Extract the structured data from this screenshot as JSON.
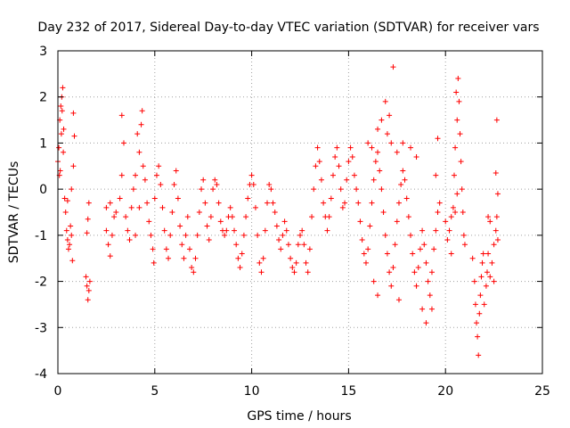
{
  "chart_data": {
    "type": "scatter",
    "title": "Day 232 of 2017, Sidereal Day-to-day VTEC variation (SDTVAR) for receiver vars",
    "xlabel": "GPS time / hours",
    "ylabel": "SDTVAR / TECUs",
    "xlim": [
      0,
      25
    ],
    "ylim": [
      -4,
      3
    ],
    "xticks": [
      0,
      5,
      10,
      15,
      20,
      25
    ],
    "yticks": [
      -4,
      -3,
      -2,
      -1,
      0,
      1,
      2,
      3
    ],
    "grid": true,
    "marker": "+",
    "marker_color": "#ff0000",
    "series": [
      {
        "name": "vars",
        "points": [
          [
            0.0,
            0.6
          ],
          [
            0.05,
            0.9
          ],
          [
            0.1,
            1.5
          ],
          [
            0.15,
            1.8
          ],
          [
            0.2,
            2.0
          ],
          [
            0.25,
            2.2
          ],
          [
            0.12,
            0.4
          ],
          [
            0.18,
            1.2
          ],
          [
            0.22,
            1.7
          ],
          [
            0.3,
            1.3
          ],
          [
            0.28,
            0.8
          ],
          [
            0.08,
            0.3
          ],
          [
            0.35,
            -0.2
          ],
          [
            0.4,
            -0.5
          ],
          [
            0.45,
            -0.9
          ],
          [
            0.5,
            -1.1
          ],
          [
            0.55,
            -1.3
          ],
          [
            0.6,
            -1.2
          ],
          [
            0.65,
            -0.8
          ],
          [
            0.7,
            -1.0
          ],
          [
            0.75,
            -1.55
          ],
          [
            0.7,
            0.0
          ],
          [
            0.8,
            0.5
          ],
          [
            0.85,
            1.15
          ],
          [
            0.8,
            1.65
          ],
          [
            0.5,
            -0.25
          ],
          [
            1.45,
            -1.9
          ],
          [
            1.5,
            -2.1
          ],
          [
            1.55,
            -2.4
          ],
          [
            1.6,
            -2.2
          ],
          [
            1.65,
            -2.0
          ],
          [
            1.5,
            -0.95
          ],
          [
            1.55,
            -0.65
          ],
          [
            1.6,
            -0.3
          ],
          [
            2.5,
            -0.9
          ],
          [
            2.6,
            -1.2
          ],
          [
            2.7,
            -1.45
          ],
          [
            2.8,
            -1.0
          ],
          [
            2.9,
            -0.6
          ],
          [
            2.5,
            -0.4
          ],
          [
            2.7,
            -0.3
          ],
          [
            3.0,
            -0.5
          ],
          [
            3.2,
            -0.2
          ],
          [
            3.3,
            0.3
          ],
          [
            3.4,
            1.0
          ],
          [
            3.3,
            1.6
          ],
          [
            3.5,
            -0.6
          ],
          [
            3.6,
            -0.9
          ],
          [
            3.7,
            -1.1
          ],
          [
            3.8,
            -0.4
          ],
          [
            3.9,
            0.0
          ],
          [
            4.0,
            0.3
          ],
          [
            4.1,
            1.2
          ],
          [
            4.2,
            0.8
          ],
          [
            4.3,
            1.4
          ],
          [
            4.35,
            1.7
          ],
          [
            4.4,
            0.5
          ],
          [
            4.5,
            0.2
          ],
          [
            4.6,
            -0.3
          ],
          [
            4.7,
            -0.7
          ],
          [
            4.8,
            -1.0
          ],
          [
            4.9,
            -1.3
          ],
          [
            4.95,
            -1.6
          ],
          [
            4.2,
            -0.4
          ],
          [
            4.0,
            -1.0
          ],
          [
            5.0,
            -0.2
          ],
          [
            5.1,
            0.3
          ],
          [
            5.2,
            0.5
          ],
          [
            5.3,
            0.1
          ],
          [
            5.4,
            -0.4
          ],
          [
            5.5,
            -0.9
          ],
          [
            5.6,
            -1.3
          ],
          [
            5.7,
            -1.5
          ],
          [
            5.8,
            -1.0
          ],
          [
            5.9,
            -0.5
          ],
          [
            6.0,
            0.1
          ],
          [
            6.1,
            0.4
          ],
          [
            6.2,
            -0.2
          ],
          [
            6.3,
            -0.8
          ],
          [
            6.4,
            -1.2
          ],
          [
            6.5,
            -1.5
          ],
          [
            6.6,
            -1.0
          ],
          [
            6.7,
            -0.6
          ],
          [
            6.8,
            -1.3
          ],
          [
            6.9,
            -1.7
          ],
          [
            7.0,
            -1.8
          ],
          [
            7.1,
            -1.5
          ],
          [
            7.2,
            -1.0
          ],
          [
            7.3,
            -0.5
          ],
          [
            7.4,
            0.0
          ],
          [
            7.5,
            0.2
          ],
          [
            7.6,
            -0.3
          ],
          [
            7.7,
            -0.8
          ],
          [
            7.8,
            -1.1
          ],
          [
            7.9,
            -0.6
          ],
          [
            8.0,
            0.0
          ],
          [
            8.1,
            0.2
          ],
          [
            8.2,
            0.1
          ],
          [
            8.3,
            -0.3
          ],
          [
            8.4,
            -0.7
          ],
          [
            8.5,
            -0.9
          ],
          [
            8.6,
            -1.0
          ],
          [
            8.7,
            -0.9
          ],
          [
            8.8,
            -0.6
          ],
          [
            8.9,
            -0.4
          ],
          [
            9.0,
            -0.6
          ],
          [
            9.1,
            -0.9
          ],
          [
            9.2,
            -1.2
          ],
          [
            9.3,
            -1.5
          ],
          [
            9.4,
            -1.7
          ],
          [
            9.5,
            -1.4
          ],
          [
            9.6,
            -1.0
          ],
          [
            9.7,
            -0.6
          ],
          [
            9.8,
            -0.2
          ],
          [
            9.9,
            0.1
          ],
          [
            10.0,
            0.3
          ],
          [
            10.1,
            0.1
          ],
          [
            10.2,
            -0.4
          ],
          [
            10.3,
            -1.0
          ],
          [
            10.4,
            -1.6
          ],
          [
            10.5,
            -1.8
          ],
          [
            10.6,
            -1.5
          ],
          [
            10.7,
            -0.9
          ],
          [
            10.8,
            -0.3
          ],
          [
            10.9,
            0.1
          ],
          [
            11.0,
            0.0
          ],
          [
            11.1,
            -0.3
          ],
          [
            11.2,
            -0.5
          ],
          [
            11.3,
            -0.8
          ],
          [
            11.4,
            -1.1
          ],
          [
            11.5,
            -1.3
          ],
          [
            11.6,
            -1.0
          ],
          [
            11.7,
            -0.7
          ],
          [
            11.8,
            -0.9
          ],
          [
            11.9,
            -1.2
          ],
          [
            12.0,
            -1.5
          ],
          [
            12.1,
            -1.7
          ],
          [
            12.2,
            -1.8
          ],
          [
            12.3,
            -1.6
          ],
          [
            12.4,
            -1.2
          ],
          [
            12.5,
            -1.0
          ],
          [
            12.6,
            -0.9
          ],
          [
            12.7,
            -1.2
          ],
          [
            12.8,
            -1.6
          ],
          [
            12.9,
            -1.8
          ],
          [
            13.0,
            -1.3
          ],
          [
            13.1,
            -0.6
          ],
          [
            13.2,
            0.0
          ],
          [
            13.3,
            0.5
          ],
          [
            13.4,
            0.9
          ],
          [
            13.5,
            0.6
          ],
          [
            13.6,
            0.2
          ],
          [
            13.7,
            -0.3
          ],
          [
            13.8,
            -0.6
          ],
          [
            13.9,
            -0.9
          ],
          [
            14.0,
            -0.6
          ],
          [
            14.1,
            -0.2
          ],
          [
            14.2,
            0.3
          ],
          [
            14.3,
            0.7
          ],
          [
            14.4,
            0.9
          ],
          [
            14.5,
            0.5
          ],
          [
            14.6,
            0.0
          ],
          [
            14.7,
            -0.4
          ],
          [
            14.8,
            -0.3
          ],
          [
            14.9,
            0.2
          ],
          [
            15.0,
            0.6
          ],
          [
            15.1,
            0.9
          ],
          [
            15.2,
            0.7
          ],
          [
            15.3,
            0.3
          ],
          [
            15.4,
            0.0
          ],
          [
            15.5,
            -0.3
          ],
          [
            15.6,
            -0.7
          ],
          [
            15.7,
            -1.1
          ],
          [
            15.8,
            -1.4
          ],
          [
            15.9,
            -1.6
          ],
          [
            16.0,
            -1.3
          ],
          [
            16.1,
            -0.8
          ],
          [
            16.2,
            -0.3
          ],
          [
            16.3,
            0.2
          ],
          [
            16.4,
            0.6
          ],
          [
            16.5,
            0.8
          ],
          [
            16.6,
            0.4
          ],
          [
            16.7,
            0.0
          ],
          [
            16.8,
            -0.5
          ],
          [
            16.9,
            -1.0
          ],
          [
            17.0,
            -1.4
          ],
          [
            17.1,
            -1.8
          ],
          [
            17.2,
            -2.1
          ],
          [
            17.3,
            -1.7
          ],
          [
            17.4,
            -1.2
          ],
          [
            17.5,
            -0.7
          ],
          [
            17.6,
            -0.3
          ],
          [
            17.7,
            0.1
          ],
          [
            17.8,
            0.4
          ],
          [
            17.9,
            0.2
          ],
          [
            18.0,
            -0.2
          ],
          [
            18.1,
            -0.6
          ],
          [
            18.2,
            -1.0
          ],
          [
            18.3,
            -1.4
          ],
          [
            18.4,
            -1.8
          ],
          [
            18.5,
            -2.1
          ],
          [
            18.6,
            -1.7
          ],
          [
            18.7,
            -1.3
          ],
          [
            18.8,
            -0.9
          ],
          [
            18.9,
            -1.2
          ],
          [
            19.0,
            -1.6
          ],
          [
            19.1,
            -2.0
          ],
          [
            19.2,
            -2.3
          ],
          [
            19.3,
            -1.8
          ],
          [
            19.4,
            -1.3
          ],
          [
            19.5,
            -0.9
          ],
          [
            19.6,
            -0.5
          ],
          [
            19.7,
            -0.3
          ],
          [
            16.0,
            1.0
          ],
          [
            16.2,
            0.9
          ],
          [
            16.5,
            1.3
          ],
          [
            16.7,
            1.5
          ],
          [
            16.9,
            1.9
          ],
          [
            17.0,
            1.2
          ],
          [
            17.1,
            1.6
          ],
          [
            17.2,
            1.0
          ],
          [
            17.3,
            2.65
          ],
          [
            17.5,
            0.8
          ],
          [
            17.8,
            1.0
          ],
          [
            16.3,
            -2.0
          ],
          [
            16.5,
            -2.3
          ],
          [
            17.6,
            -2.4
          ],
          [
            18.2,
            0.9
          ],
          [
            18.5,
            0.7
          ],
          [
            18.8,
            -2.6
          ],
          [
            19.0,
            -2.9
          ],
          [
            19.3,
            -2.6
          ],
          [
            19.6,
            1.1
          ],
          [
            19.5,
            0.3
          ],
          [
            20.0,
            -0.7
          ],
          [
            20.1,
            -1.1
          ],
          [
            20.2,
            -0.9
          ],
          [
            20.3,
            -0.6
          ],
          [
            20.4,
            -0.4
          ],
          [
            20.45,
            0.3
          ],
          [
            20.5,
            0.9
          ],
          [
            20.6,
            1.5
          ],
          [
            20.55,
            2.1
          ],
          [
            20.65,
            2.4
          ],
          [
            20.7,
            1.9
          ],
          [
            20.75,
            1.2
          ],
          [
            20.8,
            0.6
          ],
          [
            20.85,
            0.0
          ],
          [
            20.9,
            -0.5
          ],
          [
            20.95,
            -1.0
          ],
          [
            20.6,
            -0.1
          ],
          [
            20.3,
            -1.4
          ],
          [
            20.5,
            -0.5
          ],
          [
            21.0,
            -1.2
          ],
          [
            21.4,
            -1.5
          ],
          [
            21.5,
            -2.0
          ],
          [
            21.55,
            -2.5
          ],
          [
            21.6,
            -2.9
          ],
          [
            21.65,
            -3.2
          ],
          [
            21.7,
            -3.6
          ],
          [
            21.75,
            -2.7
          ],
          [
            21.8,
            -2.3
          ],
          [
            21.85,
            -1.9
          ],
          [
            21.9,
            -1.6
          ],
          [
            21.95,
            -1.4
          ],
          [
            22.0,
            -2.5
          ],
          [
            22.1,
            -2.1
          ],
          [
            22.15,
            -1.8
          ],
          [
            22.2,
            -1.4
          ],
          [
            22.3,
            -1.9
          ],
          [
            22.4,
            -1.6
          ],
          [
            22.5,
            -1.2
          ],
          [
            22.6,
            -0.9
          ],
          [
            22.65,
            -0.6
          ],
          [
            22.7,
            -1.1
          ],
          [
            22.2,
            -0.6
          ],
          [
            22.3,
            -0.7
          ],
          [
            22.6,
            0.35
          ],
          [
            22.65,
            1.5
          ],
          [
            22.7,
            -0.1
          ],
          [
            22.5,
            -2.0
          ]
        ]
      }
    ]
  }
}
